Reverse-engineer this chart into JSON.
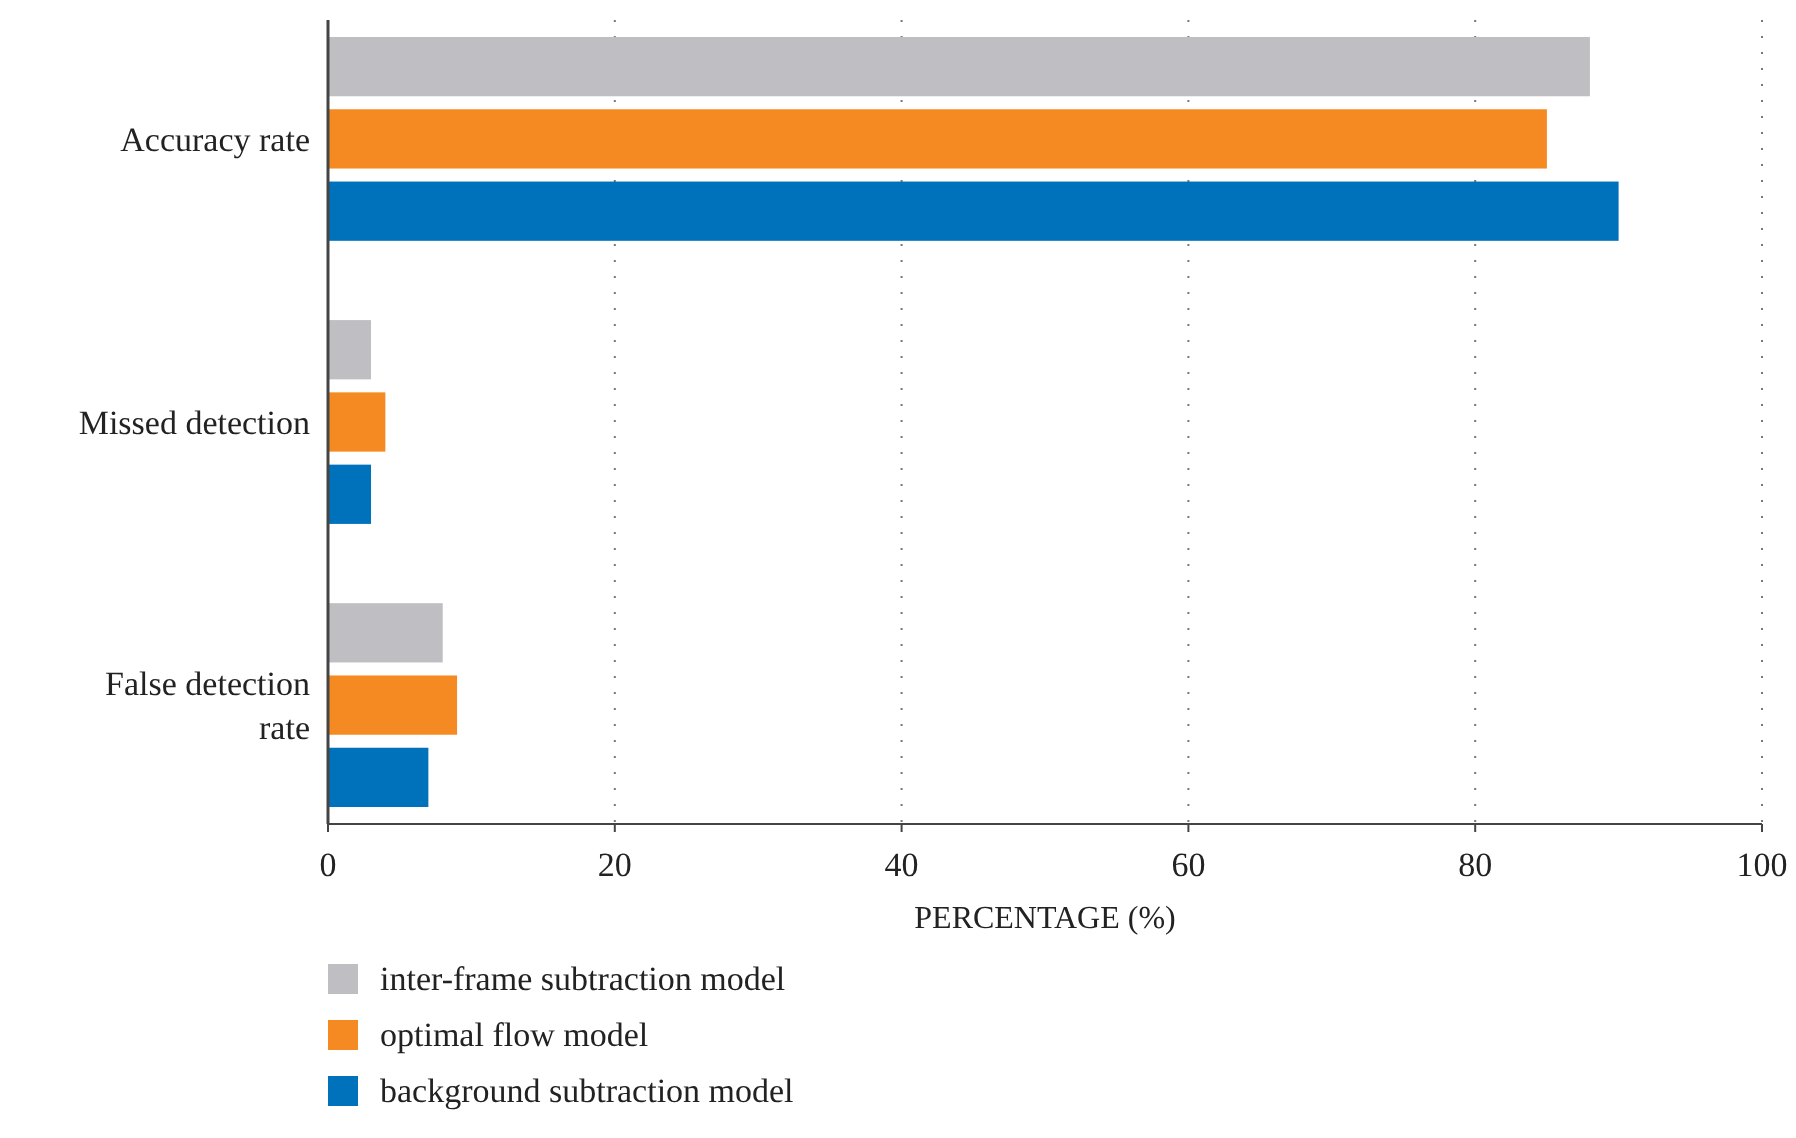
{
  "chart_data": {
    "type": "bar",
    "orientation": "horizontal",
    "categories": [
      "Accuracy rate",
      "Missed detection",
      "False detection rate"
    ],
    "series": [
      {
        "name": "inter-frame subtraction model",
        "color": "#bfbfc3",
        "values": [
          88,
          3,
          8
        ]
      },
      {
        "name": "optimal flow model",
        "color": "#f68a22",
        "values": [
          85,
          4,
          9
        ]
      },
      {
        "name": "background subtraction model",
        "color": "#0072bc",
        "values": [
          90,
          3,
          7
        ]
      }
    ],
    "xlabel": "PERCENTAGE (%)",
    "xlim": [
      0,
      100
    ],
    "xticks": [
      0,
      20,
      40,
      60,
      80,
      100
    ],
    "grid": "x",
    "legend": "bottom"
  }
}
